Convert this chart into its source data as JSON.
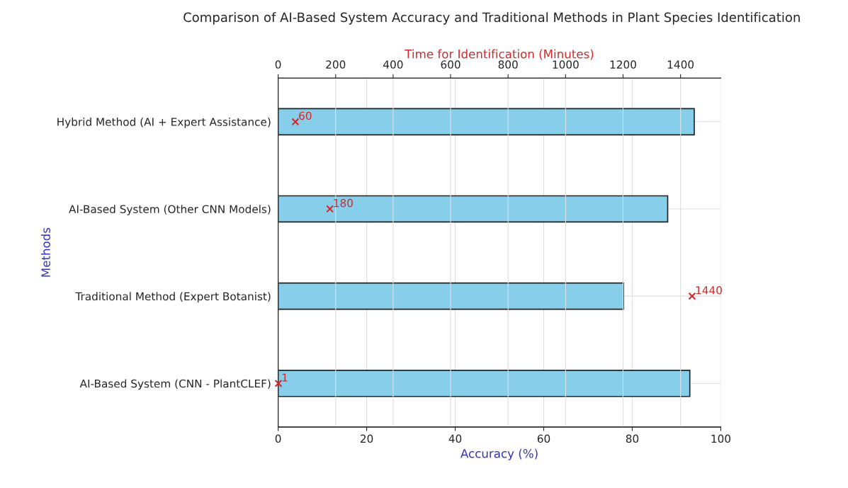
{
  "chart_data": {
    "type": "bar",
    "orientation": "horizontal",
    "title": "Comparison of AI-Based System Accuracy and Traditional Methods in Plant Species Identification",
    "xlabel": "Accuracy (%)",
    "x2label": "Time for Identification (Minutes)",
    "ylabel": "Methods",
    "categories": [
      "Hybrid Method (AI + Expert Assistance)",
      "AI-Based System (Other CNN Models)",
      "Traditional Method (Expert Botanist)",
      "AI-Based System (CNN - PlantCLEF)"
    ],
    "series": [
      {
        "color": "#87ceeb",
        "values": [
          94,
          88,
          78,
          93
        ]
      },
      {
        "type": "scatter",
        "axis": "x2",
        "color": "#d62728",
        "marker": "cross",
        "values": [
          60,
          180,
          1440,
          1
        ],
        "value_labels": [
          "60",
          "180",
          "1440",
          "1"
        ]
      }
    ],
    "xlim": [
      0,
      100
    ],
    "xticks": [
      0,
      20,
      40,
      60,
      80,
      100
    ],
    "x2lim": [
      0,
      1540
    ],
    "x2ticks": [
      0,
      200,
      400,
      600,
      800,
      1000,
      1200,
      1400
    ],
    "grid": true
  }
}
